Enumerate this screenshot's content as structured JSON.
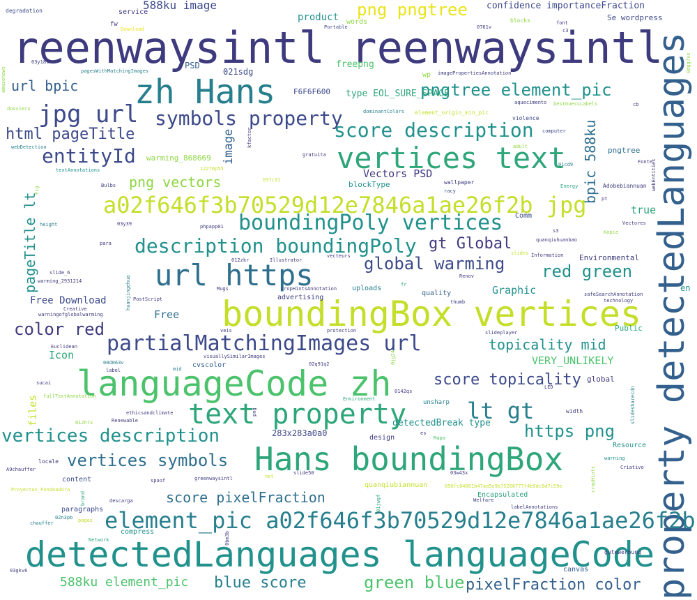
{
  "palette": {
    "dark_purple": "#3e3a7e",
    "indigo": "#3d4a8a",
    "blue": "#33608d",
    "slate_blue": "#2f6f8e",
    "teal": "#277f8e",
    "sea_green": "#21918c",
    "green": "#2ea67a",
    "light_green": "#4cc26c",
    "lime": "#8fd644",
    "yellow_green": "#c4de2a",
    "yellow": "#e8e419",
    "deep_purple": "#440154"
  },
  "words": {
    "w001": "reenwaysintl reenwaysintl",
    "w002": "property detectedLanguages",
    "w003": "zh Hans",
    "w004": "jpg url",
    "w005": "vertices text",
    "w006": "symbols property",
    "w007": "score description",
    "w008": "a02f646f3b70529d12e7846a1ae26f2b jpg",
    "w009": "boundingPoly vertices",
    "w010": "description boundingPoly",
    "w011": "url https",
    "w012": "boundingBox vertices",
    "w013": "languageCode zh",
    "w014": "partialMatchingImages url",
    "w015": "text property",
    "w016": "Hans boundingBox",
    "w017": "element_pic a02f646f3b70529d12e7846a1ae26f2b",
    "w018": "detectedLanguages languageCode",
    "w019": "png pngtree",
    "w020": "pngtree element_pic",
    "w021": "entityId",
    "w022": "html pageTitle",
    "w023": "url bpic",
    "w024": "global warming",
    "w025": "gt Global",
    "w026": "red green",
    "w027": "lt gt",
    "w028": "https png",
    "w029": "vertices description",
    "w030": "vertices symbols",
    "w031": "score pixelFraction",
    "w032": "score topicality",
    "w033": "topicality mid",
    "w034": "green blue",
    "w035": "blue score",
    "w036": "pixelFraction color",
    "w037": "588ku element_pic",
    "w038": "color red",
    "w039": "pageTitle lt",
    "w040": "bpic 588ku",
    "w041": "png vectors",
    "w042": "image",
    "w043": "588ku image",
    "w044": "Vectors PSD",
    "w045": "Free Download",
    "w046": "Free",
    "w047": "Graphic",
    "w048": "VERY_UNLIKELY",
    "w049": "true",
    "w050": "files",
    "w051": "Icon",
    "w052": "product",
    "w053": "freepng",
    "w054": "type EOL_SURE_SPACE",
    "w055": "confidence importanceFraction",
    "w056": "Se wordpress",
    "w057": "PSD",
    "w058": "021sdg",
    "w059": "F6F6F600",
    "w060": "warming_868669",
    "w061": "blockType",
    "w062": "detectedBreak type",
    "w063": "283x283a0a0",
    "w064": "Environmental",
    "w065": "pngtree",
    "w066": "global",
    "w067": "en",
    "w068": "words",
    "w069": "wp",
    "w070": "degradation",
    "w071": "service",
    "w072": "fw",
    "w073": "Download",
    "w074": "Portable",
    "w075": "blocks",
    "w076": "font",
    "w077": "pagesWithMatchingImages",
    "w078": "imagePropertiesAnnotation",
    "w079": "dominantColors",
    "w080": "element_origin_min_pic",
    "w081": "violence",
    "w082": "computer",
    "w083": "adult",
    "w084": "bestGuessLabels",
    "w085": "aquecimento",
    "w086": "webDetection",
    "w087": "textAnnotations",
    "w088": "Bulbs",
    "w089": "gratuita",
    "w090": "wallpaper",
    "w091": "racy",
    "w092": "Energy",
    "w093": "Adobebiannuan",
    "w094": "Comm",
    "w095": "Vectores",
    "w096": "Kopie",
    "w097": "phpapp01",
    "w098": "Illustrator",
    "w099": "Information",
    "w100": "quanqiuhuanbao",
    "w101": "uploads",
    "w102": "advertising",
    "w103": "quality",
    "w104": "cropHintsAnnotation",
    "w105": "thumb",
    "w106": "safeSearchAnnotation",
    "w107": "technology",
    "w108": "Public",
    "w109": "slideplayer",
    "w110": "protection",
    "w111": "visuallySimilarImages",
    "w112": "cvscolor",
    "w113": "Euclidean",
    "w114": "label",
    "w115": "mid",
    "w116": "sucai",
    "w117": "fullTextAnnotation",
    "w118": "ethicsandclimate",
    "w119": "Renewable",
    "w120": "Environment",
    "w121": "width",
    "w122": "slidesharecdn",
    "w123": "design",
    "w124": "Mapa",
    "w125": "Resource",
    "w126": "warning",
    "w127": "Criativo",
    "w128": "locale",
    "w129": "A9chauffer",
    "w130": "content",
    "w131": "spoof",
    "w132": "greenwaysintl",
    "w133": "slide50",
    "w134": "quanqiubiannuan",
    "w135": "056fc04861b47aa5e9b75266777f4b9dc6d7c59e",
    "w136": "Encapsulated",
    "w137": "Welfare",
    "w138": "labelAnnotations",
    "w139": "paragraphs",
    "w140": "descarga",
    "w141": "chauffer",
    "w142": "compress",
    "w143": "Network",
    "w144": "gutewerbung",
    "w145": "canvas",
    "w146": "Proyectos_Fondeadora",
    "w147": "LED",
    "w148": "unsharp",
    "w149": "0142qs",
    "w150": "02q91q2",
    "w151": "00d063v",
    "w152": "012h7x",
    "w153": "02n3pb",
    "w154": "03gkv6",
    "w155": "03y18t",
    "w156": "03y39",
    "w157": "012zkr",
    "w158": "03w43x",
    "w159": "01jwgf",
    "w160": "01cd9",
    "w161": "0bm3b",
    "w162": "dossiers",
    "w163": "amazonaws",
    "w164": "slide_6",
    "w165": "warming_2931214",
    "w166": "Creative",
    "w167": "warningofglobalwarming",
    "w168": "PostScript",
    "w169": "huanjingehua",
    "w170": "Mugs",
    "w171": "veis",
    "w172": "para",
    "w173": "height",
    "w174": "12276p55",
    "w175": "kfactor",
    "w176": "vecteurs",
    "w177": "es",
    "w178": "fr",
    "w179": "pt",
    "w180": "cb",
    "w181": "s3",
    "w182": "slides",
    "w183": "Renov",
    "w184": "Fonte",
    "w185": "webEntities",
    "w186": "cropHints",
    "w187": "brand",
    "w188": "pages",
    "w189": "png",
    "w190": "net",
    "w191": "0dgg7xx",
    "w192": "Fig",
    "w193": "03fc31",
    "w194": "0jg24",
    "w195": "0761v",
    "w196": "c3"
  }
}
